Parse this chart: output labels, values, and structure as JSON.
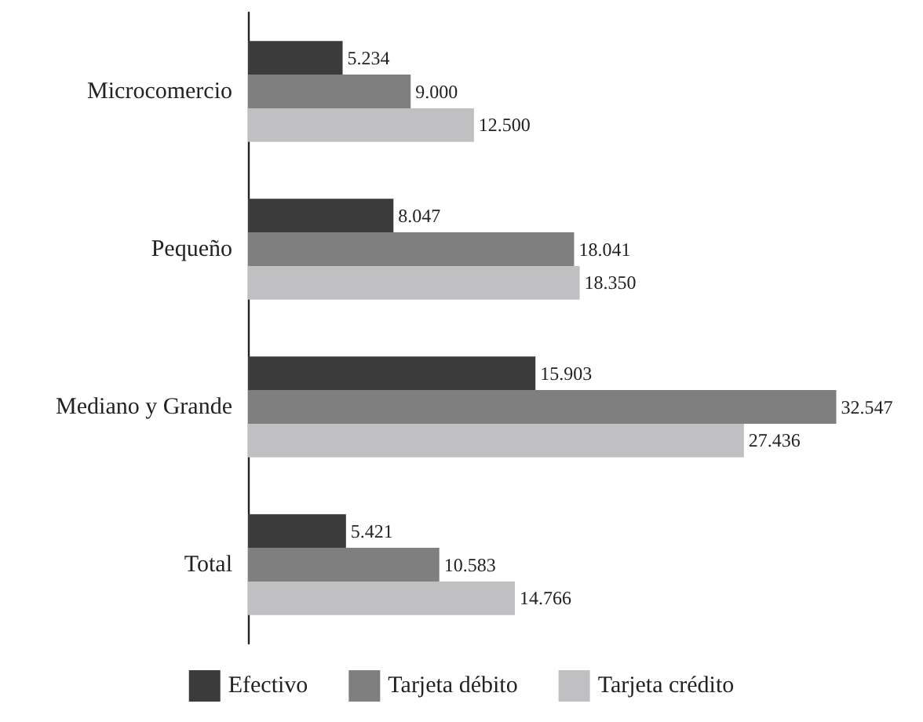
{
  "chart_data": {
    "type": "bar",
    "orientation": "horizontal",
    "categories": [
      "Microcomercio",
      "Pequeño",
      "Mediano y Grande",
      "Total"
    ],
    "series": [
      {
        "name": "Efectivo",
        "color": "#3b3b3b",
        "values": [
          5234,
          8047,
          15903,
          5421
        ],
        "value_labels": [
          "5.234",
          "8.047",
          "15.903",
          "5.421"
        ]
      },
      {
        "name": "Tarjeta débito",
        "color": "#7f7f7f",
        "values": [
          9000,
          18041,
          32547,
          10583
        ],
        "value_labels": [
          "9.000",
          "18.041",
          "32.547",
          "10.583"
        ]
      },
      {
        "name": "Tarjeta crédito",
        "color": "#c0c0c2",
        "values": [
          12500,
          18350,
          27436,
          14766
        ],
        "value_labels": [
          "12.500",
          "18.350",
          "27.436",
          "14.766"
        ]
      }
    ],
    "tick_labels": "y",
    "grid": false,
    "legend": "bottom"
  }
}
